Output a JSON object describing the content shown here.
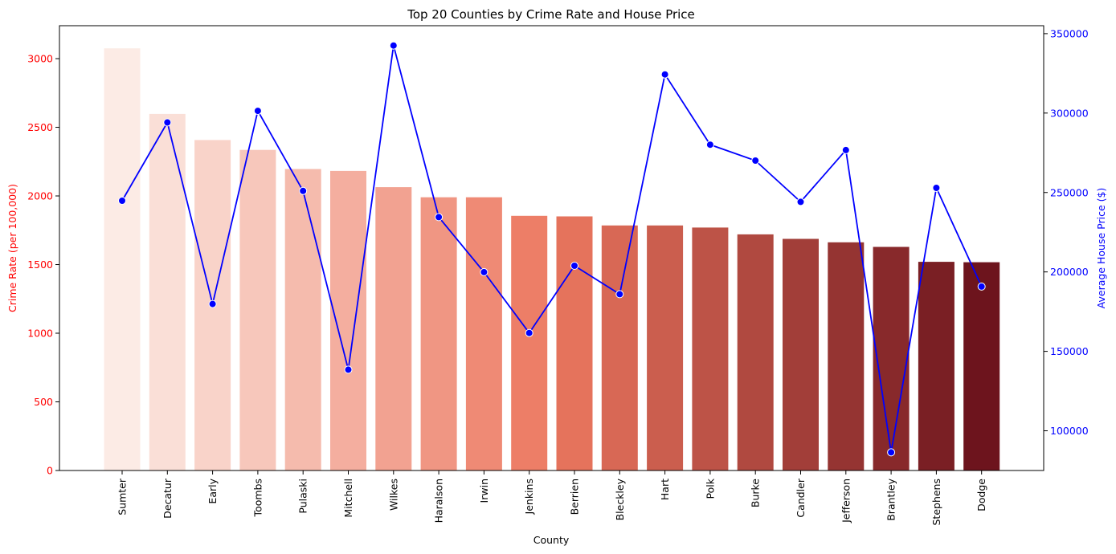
{
  "chart_data": {
    "type": "bar",
    "title": "Top 20 Counties by Crime Rate and House Price",
    "xlabel": "County",
    "ylabel_left": "Crime Rate (per 100,000)",
    "ylabel_right": "Average House Price ($)",
    "categories": [
      "Sumter",
      "Decatur",
      "Early",
      "Toombs",
      "Pulaski",
      "Mitchell",
      "Wilkes",
      "Haralson",
      "Irwin",
      "Jenkins",
      "Berrien",
      "Bleckley",
      "Hart",
      "Polk",
      "Burke",
      "Candler",
      "Jefferson",
      "Brantley",
      "Stephens",
      "Dodge"
    ],
    "series": [
      {
        "name": "Crime Rate (per 100,000)",
        "type": "bar",
        "axis": "left",
        "values": [
          3075,
          2597,
          2407,
          2335,
          2196,
          2182,
          2064,
          1990,
          1990,
          1855,
          1851,
          1785,
          1785,
          1770,
          1720,
          1687,
          1662,
          1629,
          1520,
          1517
        ],
        "color_start": "#fcebe5",
        "color_end": "#6d141d"
      },
      {
        "name": "Average House Price ($)",
        "type": "line",
        "axis": "right",
        "values": [
          244800,
          294100,
          179800,
          301400,
          251000,
          138500,
          342500,
          234500,
          199900,
          161600,
          203900,
          186000,
          324300,
          280100,
          270100,
          244100,
          276700,
          86400,
          252900,
          190800
        ],
        "color": "#0000ff"
      }
    ],
    "ylim_left": [
      0,
      3240
    ],
    "ylim_right": [
      75000,
      355000
    ],
    "yticks_left": [
      "0",
      "500",
      "1000",
      "1500",
      "2000",
      "2500",
      "3000"
    ],
    "yticks_right": [
      "100000",
      "150000",
      "200000",
      "250000",
      "300000",
      "350000"
    ],
    "left_axis_color": "#ff0000",
    "right_axis_color": "#0000ff",
    "grid": false
  }
}
